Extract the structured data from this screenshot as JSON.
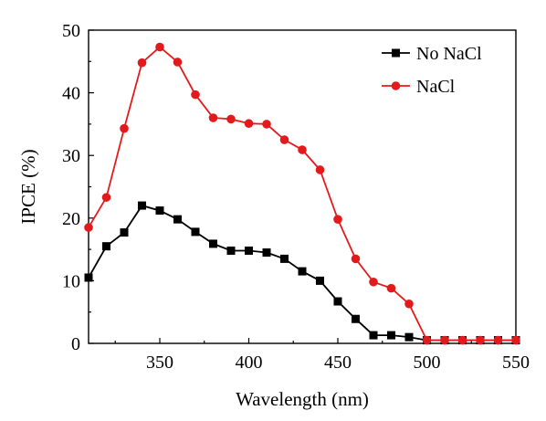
{
  "chart_data": {
    "type": "line",
    "xlabel": "Wavelength (nm)",
    "ylabel": "IPCE (%)",
    "xlim": [
      310,
      550
    ],
    "ylim": [
      0,
      50
    ],
    "xticks": [
      350,
      400,
      450,
      500,
      550
    ],
    "yticks": [
      0,
      10,
      20,
      30,
      40,
      50
    ],
    "grid": false,
    "legend_position": "top-right",
    "x": [
      310,
      320,
      330,
      340,
      350,
      360,
      370,
      380,
      390,
      400,
      410,
      420,
      430,
      440,
      450,
      460,
      470,
      480,
      490,
      500,
      510,
      520,
      530,
      540,
      550
    ],
    "series": [
      {
        "name": "No NaCl",
        "color": "#000000",
        "marker": "square",
        "values": [
          10.5,
          15.5,
          17.7,
          22.0,
          21.2,
          19.8,
          17.8,
          15.9,
          14.8,
          14.8,
          14.5,
          13.5,
          11.5,
          10.0,
          6.7,
          3.9,
          1.3,
          1.3,
          1.0,
          0.5,
          0.5,
          0.5,
          0.5,
          0.5,
          0.5
        ]
      },
      {
        "name": "NaCl",
        "color": "#e31a1c",
        "marker": "circle",
        "values": [
          18.5,
          23.3,
          34.3,
          44.8,
          47.3,
          44.9,
          39.7,
          36.0,
          35.8,
          35.1,
          35.0,
          32.5,
          30.9,
          27.7,
          19.8,
          13.5,
          9.8,
          8.8,
          6.3,
          0.5,
          0.5,
          0.5,
          0.5,
          0.5,
          0.5
        ]
      }
    ]
  }
}
